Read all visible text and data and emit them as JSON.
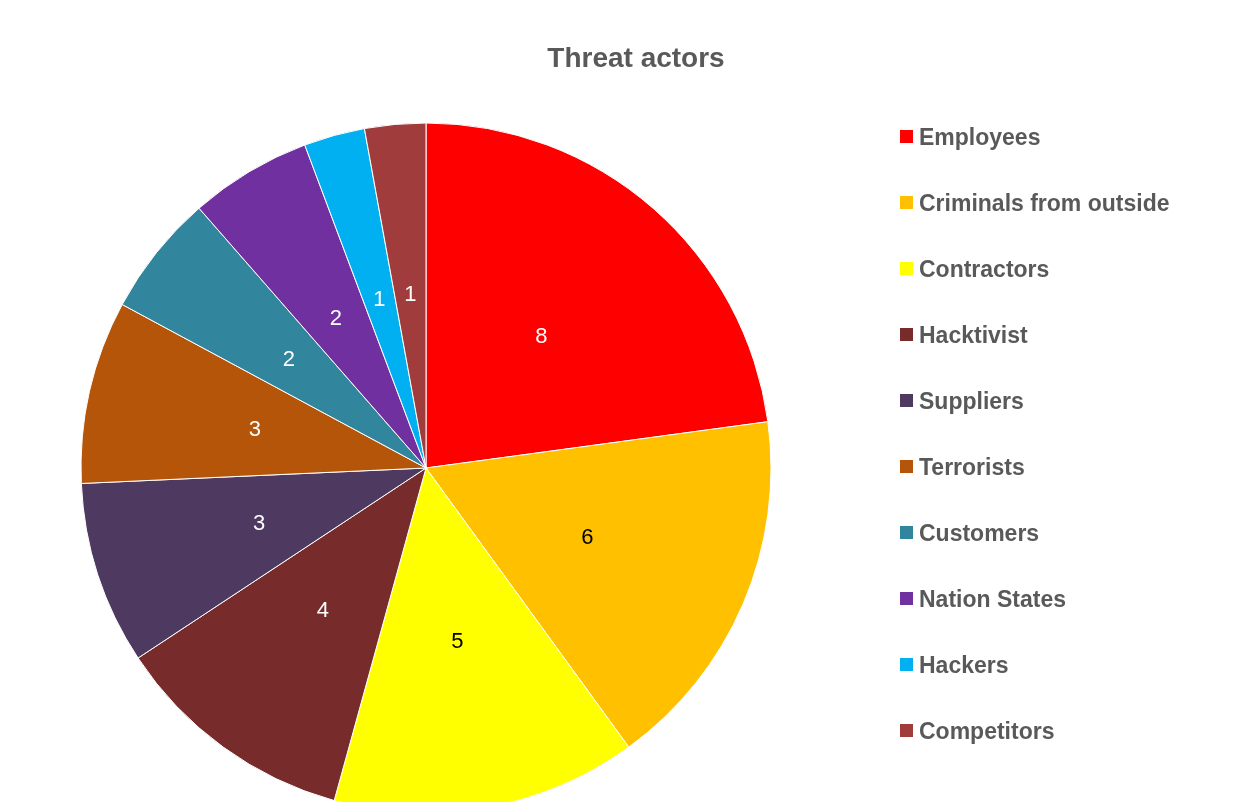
{
  "chart_data": {
    "type": "pie",
    "title": "Threat actors",
    "categories": [
      "Employees",
      "Criminals from outside",
      "Contractors",
      "Hacktivist",
      "Suppliers",
      "Terrorists",
      "Customers",
      "Nation States",
      "Hackers",
      "Competitors"
    ],
    "values": [
      8,
      6,
      5,
      4,
      3,
      3,
      2,
      2,
      1,
      1
    ],
    "colors": [
      "#ff0000",
      "#ffc000",
      "#ffff00",
      "#772b2b",
      "#4e3a60",
      "#b5550a",
      "#31859c",
      "#7030a0",
      "#00b0f0",
      "#a03c3c"
    ],
    "data_labels": true,
    "legend": "right"
  }
}
